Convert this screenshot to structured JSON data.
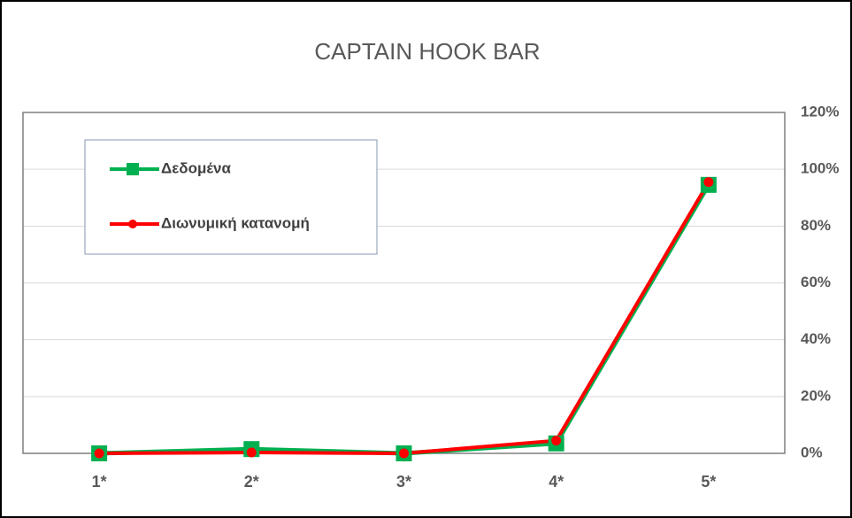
{
  "chart_data": {
    "type": "line",
    "title": "CAPTAIN HOOK BAR",
    "categories": [
      "1*",
      "2*",
      "3*",
      "4*",
      "5*"
    ],
    "series": [
      {
        "name": "Δεδομένα",
        "color": "#00b050",
        "values": [
          0,
          1.5,
          0,
          3.5,
          94.5
        ]
      },
      {
        "name": "Διωνυμική κατανομή",
        "color": "#ff0000",
        "values": [
          0,
          0.3,
          0,
          4.5,
          95.5
        ]
      }
    ],
    "ylim": [
      0,
      120
    ],
    "yticks": [
      {
        "value": 0,
        "label": "0%"
      },
      {
        "value": 20,
        "label": "20%"
      },
      {
        "value": 40,
        "label": "40%"
      },
      {
        "value": 60,
        "label": "60%"
      },
      {
        "value": 80,
        "label": "80%"
      },
      {
        "value": 100,
        "label": "100%"
      },
      {
        "value": 120,
        "label": "120%"
      }
    ],
    "grid": true,
    "legend": "upper left"
  }
}
